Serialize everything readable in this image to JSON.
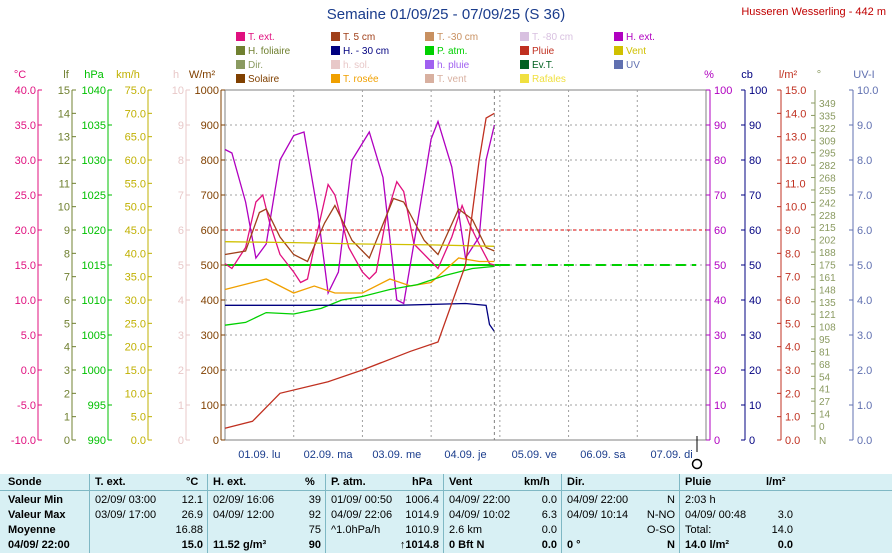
{
  "title": "Semaine 01/09/25 - 07/09/25 (S 36)",
  "station": "Husseren Wesserling - 442 m",
  "legend": [
    {
      "label": "T. ext.",
      "color": "#e0107f"
    },
    {
      "label": "T. 5 cm",
      "color": "#a0401a"
    },
    {
      "label": "T. -30 cm",
      "color": "#c89060"
    },
    {
      "label": "T. -80 cm",
      "color": "#d8c0e0"
    },
    {
      "label": "H. ext.",
      "color": "#b000c0"
    },
    {
      "label": "H. foliaire",
      "color": "#708030"
    },
    {
      "label": "H. - 30 cm",
      "color": "#000080"
    },
    {
      "label": "P. atm.",
      "color": "#00d000"
    },
    {
      "label": "Pluie",
      "color": "#c03020"
    },
    {
      "label": "Vent",
      "color": "#d0c000"
    },
    {
      "label": "Dir.",
      "color": "#8a9a60"
    },
    {
      "label": "h. sol.",
      "color": "#e8c8c8"
    },
    {
      "label": "h. pluie",
      "color": "#a060f0"
    },
    {
      "label": "Ev.T.",
      "color": "#006020"
    },
    {
      "label": "UV",
      "color": "#6070b0"
    },
    {
      "label": "Solaire",
      "color": "#804000"
    },
    {
      "label": "T. rosée",
      "color": "#f0a000"
    },
    {
      "label": "T. vent",
      "color": "#d8b0a0"
    },
    {
      "label": "Rafales",
      "color": "#f0e040"
    }
  ],
  "axes": {
    "temp": {
      "unit": "°C",
      "ticks": [
        "40.0",
        "35.0",
        "30.0",
        "25.0",
        "20.0",
        "15.0",
        "10.0",
        "5.0",
        "0.0",
        "-5.0",
        "-10.0"
      ],
      "color": "#e0107f"
    },
    "lf": {
      "unit": "lf",
      "ticks": [
        "15",
        "14",
        "13",
        "12",
        "11",
        "10",
        "9",
        "8",
        "7",
        "6",
        "5",
        "4",
        "3",
        "2",
        "1",
        "0"
      ],
      "color": "#708030"
    },
    "hpa": {
      "unit": "hPa",
      "ticks": [
        "1040",
        "1035",
        "1030",
        "1025",
        "1020",
        "1015",
        "1010",
        "1005",
        "1000",
        "995",
        "990"
      ],
      "color": "#00c000"
    },
    "kmh": {
      "unit": "km/h",
      "ticks": [
        "75.0",
        "70.0",
        "65.0",
        "60.0",
        "55.0",
        "50.0",
        "45.0",
        "40.0",
        "35.0",
        "30.0",
        "25.0",
        "20.0",
        "15.0",
        "10.0",
        "5.0",
        "0.0"
      ],
      "color": "#c0b000"
    },
    "h": {
      "unit": "h",
      "ticks": [
        "10",
        "9",
        "8",
        "7",
        "6",
        "5",
        "4",
        "3",
        "2",
        "1",
        "0"
      ],
      "color": "#e8c8c8"
    },
    "wm2": {
      "unit": "W/m²",
      "ticks": [
        "1000",
        "900",
        "800",
        "700",
        "600",
        "500",
        "400",
        "300",
        "200",
        "100",
        "0"
      ],
      "color": "#804000"
    },
    "pct": {
      "unit": "%",
      "ticks": [
        "100",
        "90",
        "80",
        "70",
        "60",
        "50",
        "40",
        "30",
        "20",
        "10",
        "0"
      ],
      "color": "#b000c0"
    },
    "cb": {
      "unit": "cb",
      "ticks": [
        "100",
        "90",
        "80",
        "70",
        "60",
        "50",
        "40",
        "30",
        "20",
        "10",
        "0"
      ],
      "color": "#000080"
    },
    "lm2": {
      "unit": "l/m²",
      "ticks": [
        "15.0",
        "14.0",
        "13.0",
        "12.0",
        "11.0",
        "10.0",
        "9.0",
        "8.0",
        "7.0",
        "6.0",
        "5.0",
        "4.0",
        "3.0",
        "2.0",
        "1.0",
        "0.0"
      ],
      "color": "#c03020"
    },
    "dir": {
      "unit": "°",
      "ticks": [
        "349",
        "335",
        "322",
        "309",
        "295",
        "282",
        "268",
        "255",
        "242",
        "228",
        "215",
        "202",
        "188",
        "175",
        "161",
        "148",
        "135",
        "121",
        "108",
        "95",
        "81",
        "68",
        "54",
        "41",
        "27",
        "14",
        "0"
      ],
      "color": "#8a9a60",
      "bottom_label": "N"
    },
    "uv": {
      "unit": "UV-I",
      "ticks": [
        "10.0",
        "9.0",
        "8.0",
        "7.0",
        "6.0",
        "5.0",
        "4.0",
        "3.0",
        "2.0",
        "1.0",
        "0.0"
      ],
      "color": "#6070b0"
    }
  },
  "chart_data": {
    "type": "line",
    "x": [
      "01.09. lu",
      "02.09. ma",
      "03.09. me",
      "04.09. je",
      "05.09. ve",
      "06.09. sa",
      "07.09. di"
    ],
    "series": [
      {
        "name": "T. ext.",
        "axis": "°C",
        "values": [
          [
            0,
            15.2
          ],
          [
            0.1,
            14.5
          ],
          [
            0.3,
            17.5
          ],
          [
            0.45,
            24.0
          ],
          [
            0.55,
            25.0
          ],
          [
            0.65,
            21.0
          ],
          [
            0.8,
            16.5
          ],
          [
            1.0,
            14.0
          ],
          [
            1.1,
            12.5
          ],
          [
            1.2,
            13.0
          ],
          [
            1.35,
            20.0
          ],
          [
            1.5,
            26.5
          ],
          [
            1.6,
            25.0
          ],
          [
            1.8,
            17.5
          ],
          [
            2.0,
            14.0
          ],
          [
            2.1,
            13.0
          ],
          [
            2.2,
            14.0
          ],
          [
            2.35,
            22.0
          ],
          [
            2.5,
            26.9
          ],
          [
            2.6,
            25.5
          ],
          [
            2.75,
            18.0
          ],
          [
            3.0,
            15.5
          ],
          [
            3.1,
            14.5
          ],
          [
            3.3,
            19.0
          ],
          [
            3.45,
            23.5
          ],
          [
            3.55,
            21.0
          ],
          [
            3.7,
            18.0
          ],
          [
            3.85,
            15.2
          ],
          [
            3.92,
            15.0
          ]
        ]
      },
      {
        "name": "H. ext.",
        "axis": "%",
        "values": [
          [
            0,
            83
          ],
          [
            0.1,
            82
          ],
          [
            0.3,
            68
          ],
          [
            0.45,
            52
          ],
          [
            0.6,
            56
          ],
          [
            0.8,
            80
          ],
          [
            1.0,
            87
          ],
          [
            1.15,
            88
          ],
          [
            1.35,
            65
          ],
          [
            1.5,
            42
          ],
          [
            1.65,
            48
          ],
          [
            1.85,
            80
          ],
          [
            2.1,
            88
          ],
          [
            2.3,
            75
          ],
          [
            2.5,
            40
          ],
          [
            2.6,
            39
          ],
          [
            2.8,
            62
          ],
          [
            3.0,
            86
          ],
          [
            3.1,
            91
          ],
          [
            3.3,
            78
          ],
          [
            3.5,
            52
          ],
          [
            3.7,
            58
          ],
          [
            3.8,
            80
          ],
          [
            3.92,
            90
          ]
        ]
      },
      {
        "name": "T. 5 cm",
        "axis": "°C",
        "values": [
          [
            0,
            16.5
          ],
          [
            0.3,
            17.0
          ],
          [
            0.5,
            22.5
          ],
          [
            0.6,
            23.0
          ],
          [
            0.8,
            19.0
          ],
          [
            1.0,
            16.5
          ],
          [
            1.2,
            15.5
          ],
          [
            1.45,
            21.0
          ],
          [
            1.6,
            23.5
          ],
          [
            1.85,
            18.5
          ],
          [
            2.1,
            16.0
          ],
          [
            2.45,
            24.5
          ],
          [
            2.6,
            24.0
          ],
          [
            2.9,
            18.5
          ],
          [
            3.1,
            16.5
          ],
          [
            3.4,
            23.0
          ],
          [
            3.6,
            21.5
          ],
          [
            3.8,
            17.5
          ],
          [
            3.92,
            17.0
          ]
        ]
      },
      {
        "name": "T. rosée",
        "axis": "°C",
        "values": [
          [
            0,
            11.5
          ],
          [
            0.4,
            12.5
          ],
          [
            0.6,
            13.0
          ],
          [
            1.0,
            11.0
          ],
          [
            1.3,
            12.0
          ],
          [
            1.6,
            11.0
          ],
          [
            2.0,
            11.0
          ],
          [
            2.4,
            13.0
          ],
          [
            2.7,
            12.0
          ],
          [
            3.0,
            12.5
          ],
          [
            3.4,
            16.0
          ],
          [
            3.7,
            15.5
          ],
          [
            3.92,
            15.5
          ]
        ]
      },
      {
        "name": "P. atm.",
        "axis": "hPa",
        "values": [
          [
            0,
            1006.4
          ],
          [
            0.3,
            1006.8
          ],
          [
            0.6,
            1008.2
          ],
          [
            1.0,
            1008.0
          ],
          [
            1.4,
            1008.8
          ],
          [
            1.7,
            1010.0
          ],
          [
            2.0,
            1010.5
          ],
          [
            2.4,
            1011.5
          ],
          [
            2.8,
            1012.2
          ],
          [
            3.2,
            1013.5
          ],
          [
            3.6,
            1014.5
          ],
          [
            3.92,
            1014.8
          ]
        ]
      },
      {
        "name": "H. - 30 cm",
        "axis": "cb",
        "values": [
          [
            0,
            38.5
          ],
          [
            2.5,
            38.5
          ],
          [
            3.5,
            39.0
          ],
          [
            3.8,
            38.5
          ],
          [
            3.85,
            33.0
          ],
          [
            3.92,
            31.0
          ]
        ]
      },
      {
        "name": "Vent",
        "axis": "km/h",
        "values": [
          [
            0,
            42.5
          ],
          [
            1.0,
            42.3
          ],
          [
            2.0,
            42.0
          ],
          [
            3.0,
            41.8
          ],
          [
            3.92,
            41.5
          ]
        ]
      },
      {
        "name": "Pluie",
        "axis": "l/m²",
        "values": [
          [
            0,
            0.5
          ],
          [
            0.4,
            0.8
          ],
          [
            0.8,
            2.0
          ],
          [
            1.5,
            2.5
          ],
          [
            2.0,
            3.0
          ],
          [
            2.7,
            3.8
          ],
          [
            3.1,
            4.2
          ],
          [
            3.5,
            7.5
          ],
          [
            3.7,
            12.0
          ],
          [
            3.8,
            13.8
          ],
          [
            3.92,
            14.0
          ]
        ]
      }
    ],
    "reference_lines": [
      {
        "axis": "°C",
        "value": 20.0,
        "color": "#e00000",
        "style": "dashed-red"
      },
      {
        "axis": "°C",
        "value": 15.0,
        "color": "#00d000",
        "style": "dashed-green-forecast"
      }
    ]
  },
  "stats": {
    "headers": {
      "sonde": "Sonde",
      "text": "T. ext.",
      "text_unit": "°C",
      "hext": "H. ext.",
      "hext_unit": "%",
      "patm": "P. atm.",
      "patm_unit": "hPa",
      "vent": "Vent",
      "vent_unit": "km/h",
      "dir": "Dir.",
      "pluie": "Pluie",
      "pluie_unit": "l/m²"
    },
    "rows": [
      {
        "label": "Valeur Min",
        "text_t": "02/09/  03:00",
        "text_v": "12.1",
        "hext_t": "02/09/  16:06",
        "hext_v": "39",
        "patm_t": "01/09/  00:50",
        "patm_v": "1006.4",
        "vent_t": "04/09/  22:00",
        "vent_v": "0.0",
        "dir_t": "04/09/  22:00",
        "dir_v": "N",
        "pluie_t": "2:03 h",
        "pluie_v": ""
      },
      {
        "label": "Valeur Max",
        "text_t": "03/09/  17:00",
        "text_v": "26.9",
        "hext_t": "04/09/  12:00",
        "hext_v": "92",
        "patm_t": "04/09/  22:06",
        "patm_v": "1014.9",
        "vent_t": "04/09/  10:02",
        "vent_v": "6.3",
        "dir_t": "04/09/  10:14",
        "dir_v": "N-NO",
        "pluie_t": "04/09/  00:48",
        "pluie_v": "3.0"
      },
      {
        "label": "Moyenne",
        "text_t": "",
        "text_v": "16.88",
        "hext_t": "",
        "hext_v": "75",
        "patm_t": "^1.0hPa/h",
        "patm_v": "1010.9",
        "vent_t": "2.6 km",
        "vent_v": "0.0",
        "dir_t": "",
        "dir_v": "O-SO",
        "pluie_t": "Total:",
        "pluie_v": "14.0"
      },
      {
        "label": "04/09/ 22:00",
        "text_t": "",
        "text_v": "15.0",
        "hext_t": "11.52 g/m³",
        "hext_v": "90",
        "patm_t": "",
        "patm_v": "↑1014.8",
        "vent_t": "0 Bft N",
        "vent_v": "0.0",
        "dir_t": "0 °",
        "dir_v": "N",
        "pluie_t": "14.0 l/m²",
        "pluie_v": "0.0"
      }
    ]
  }
}
